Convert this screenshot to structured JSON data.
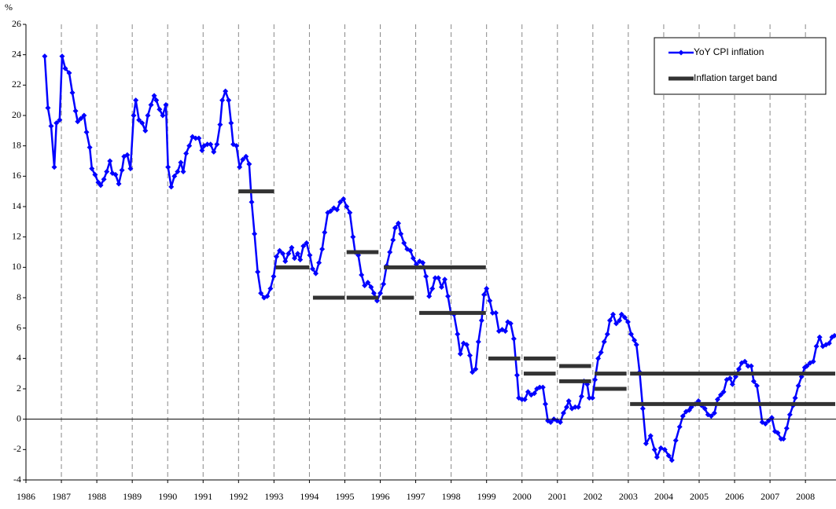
{
  "chart_data": {
    "type": "line",
    "y_label": "%",
    "xlim": [
      1986,
      2008.84
    ],
    "xticks": [
      1986,
      1987,
      1988,
      1989,
      1990,
      1991,
      1992,
      1993,
      1994,
      1995,
      1996,
      1997,
      1998,
      1999,
      2000,
      2001,
      2002,
      2003,
      2004,
      2005,
      2006,
      2007,
      2008
    ],
    "ylim": [
      -4,
      26
    ],
    "yticks": [
      -4,
      -2,
      0,
      2,
      4,
      6,
      8,
      10,
      12,
      14,
      16,
      18,
      20,
      22,
      24,
      26
    ],
    "xgrid": true,
    "legend": "top-right",
    "series": [
      {
        "name": "YoY CPI inflation",
        "color": "#0000ff",
        "marker": "diamond",
        "x": [
          1986.53,
          1986.62,
          1986.71,
          1986.8,
          1986.86,
          1986.95,
          1987.02,
          1987.11,
          1987.22,
          1987.31,
          1987.4,
          1987.46,
          1987.55,
          1987.64,
          1987.71,
          1987.8,
          1987.86,
          1987.95,
          1988.04,
          1988.11,
          1988.2,
          1988.28,
          1988.37,
          1988.44,
          1988.53,
          1988.62,
          1988.71,
          1988.77,
          1988.86,
          1988.95,
          1989.04,
          1989.1,
          1989.19,
          1989.28,
          1989.37,
          1989.44,
          1989.53,
          1989.62,
          1989.68,
          1989.77,
          1989.86,
          1989.95,
          1990.01,
          1990.1,
          1990.19,
          1990.28,
          1990.37,
          1990.44,
          1990.52,
          1990.61,
          1990.7,
          1990.79,
          1990.88,
          1990.97,
          1991.03,
          1991.12,
          1991.21,
          1991.3,
          1991.39,
          1991.48,
          1991.54,
          1991.63,
          1991.72,
          1991.79,
          1991.85,
          1991.94,
          1992.03,
          1992.12,
          1992.21,
          1992.3,
          1992.37,
          1992.45,
          1992.54,
          1992.63,
          1992.72,
          1992.81,
          1992.9,
          1992.99,
          1993.07,
          1993.16,
          1993.25,
          1993.32,
          1993.41,
          1993.5,
          1993.58,
          1993.67,
          1993.74,
          1993.83,
          1993.92,
          1994.01,
          1994.09,
          1994.18,
          1994.27,
          1994.36,
          1994.43,
          1994.52,
          1994.6,
          1994.69,
          1994.78,
          1994.87,
          1994.96,
          1995.05,
          1995.14,
          1995.23,
          1995.29,
          1995.38,
          1995.47,
          1995.56,
          1995.65,
          1995.74,
          1995.82,
          1995.91,
          1996.0,
          1996.09,
          1996.18,
          1996.27,
          1996.36,
          1996.42,
          1996.51,
          1996.58,
          1996.67,
          1996.76,
          1996.85,
          1996.93,
          1997.02,
          1997.11,
          1997.2,
          1997.29,
          1997.38,
          1997.47,
          1997.55,
          1997.64,
          1997.73,
          1997.82,
          1997.91,
          1997.99,
          1998.08,
          1998.18,
          1998.26,
          1998.35,
          1998.44,
          1998.53,
          1998.6,
          1998.69,
          1998.77,
          1998.86,
          1998.93,
          1999.0,
          1999.09,
          1999.17,
          1999.26,
          1999.35,
          1999.44,
          1999.53,
          1999.6,
          1999.68,
          1999.77,
          1999.86,
          1999.91,
          2000.0,
          2000.08,
          2000.17,
          2000.26,
          2000.35,
          2000.42,
          2000.5,
          2000.59,
          2000.66,
          2000.73,
          2000.81,
          2000.9,
          2000.99,
          2001.08,
          2001.17,
          2001.26,
          2001.32,
          2001.41,
          2001.5,
          2001.59,
          2001.68,
          2001.75,
          2001.84,
          2001.9,
          2001.99,
          2002.06,
          2002.15,
          2002.23,
          2002.32,
          2002.41,
          2002.48,
          2002.57,
          2002.66,
          2002.75,
          2002.81,
          2002.9,
          2002.99,
          2003.08,
          2003.17,
          2003.23,
          2003.32,
          2003.41,
          2003.5,
          2003.63,
          2003.74,
          2003.81,
          2003.92,
          2004.03,
          2004.14,
          2004.23,
          2004.34,
          2004.45,
          2004.54,
          2004.63,
          2004.72,
          2004.78,
          2004.89,
          2004.98,
          2005.07,
          2005.16,
          2005.25,
          2005.34,
          2005.43,
          2005.52,
          2005.61,
          2005.69,
          2005.78,
          2005.87,
          2005.94,
          2006.03,
          2006.12,
          2006.2,
          2006.29,
          2006.38,
          2006.47,
          2006.54,
          2006.63,
          2006.71,
          2006.78,
          2006.87,
          2006.96,
          2007.05,
          2007.14,
          2007.22,
          2007.31,
          2007.38,
          2007.47,
          2007.56,
          2007.65,
          2007.71,
          2007.8,
          2007.89,
          2007.98,
          2008.04,
          2008.13,
          2008.22,
          2008.31,
          2008.4,
          2008.49,
          2008.58,
          2008.67,
          2008.75,
          2008.82
        ],
        "values": [
          23.9,
          20.5,
          19.3,
          16.6,
          19.5,
          19.7,
          23.9,
          23.1,
          22.8,
          21.5,
          20.3,
          19.6,
          19.8,
          20.0,
          18.9,
          17.9,
          16.5,
          16.1,
          15.6,
          15.4,
          15.8,
          16.3,
          17.0,
          16.2,
          16.1,
          15.5,
          16.4,
          17.3,
          17.4,
          16.5,
          20.0,
          21.0,
          19.7,
          19.5,
          19.0,
          20.0,
          20.7,
          21.3,
          21.0,
          20.4,
          20.0,
          20.7,
          16.6,
          15.3,
          16.0,
          16.3,
          16.9,
          16.3,
          17.5,
          18.0,
          18.6,
          18.5,
          18.5,
          17.7,
          18.0,
          18.1,
          18.1,
          17.6,
          18.1,
          19.4,
          21.0,
          21.6,
          21.0,
          19.5,
          18.1,
          18.0,
          16.6,
          17.1,
          17.3,
          16.8,
          14.3,
          12.2,
          9.7,
          8.3,
          8.0,
          8.1,
          8.6,
          9.4,
          10.7,
          11.1,
          10.9,
          10.4,
          10.9,
          11.3,
          10.6,
          10.9,
          10.5,
          11.4,
          11.6,
          10.8,
          9.9,
          9.6,
          10.3,
          11.2,
          12.3,
          13.6,
          13.7,
          13.9,
          13.8,
          14.3,
          14.5,
          14.0,
          13.6,
          12.0,
          11.0,
          10.8,
          9.5,
          8.8,
          9.0,
          8.7,
          8.3,
          7.8,
          8.3,
          8.9,
          10.1,
          11.0,
          11.8,
          12.6,
          12.9,
          12.2,
          11.6,
          11.2,
          11.1,
          10.6,
          10.2,
          10.4,
          10.3,
          9.4,
          8.1,
          8.6,
          9.3,
          9.3,
          8.7,
          9.2,
          8.1,
          7.0,
          6.9,
          5.6,
          4.3,
          5.0,
          4.9,
          4.2,
          3.1,
          3.3,
          5.1,
          6.5,
          8.2,
          8.6,
          7.8,
          7.0,
          7.0,
          5.8,
          5.9,
          5.8,
          6.4,
          6.3,
          5.3,
          2.9,
          1.4,
          1.3,
          1.3,
          1.8,
          1.6,
          1.7,
          2.0,
          2.1,
          2.1,
          1.0,
          -0.1,
          -0.2,
          0.0,
          -0.1,
          -0.2,
          0.4,
          0.8,
          1.2,
          0.7,
          0.8,
          0.8,
          1.5,
          2.5,
          2.3,
          1.4,
          1.4,
          2.6,
          4.0,
          4.4,
          5.1,
          5.6,
          6.5,
          6.9,
          6.3,
          6.5,
          6.9,
          6.7,
          6.4,
          5.6,
          5.2,
          4.9,
          3.1,
          0.7,
          -1.6,
          -1.1,
          -2.0,
          -2.5,
          -1.9,
          -2.0,
          -2.4,
          -2.7,
          -1.4,
          -0.5,
          0.2,
          0.5,
          0.6,
          0.8,
          1.0,
          1.2,
          0.9,
          0.7,
          0.3,
          0.2,
          0.4,
          1.3,
          1.6,
          1.8,
          2.6,
          2.7,
          2.3,
          2.8,
          3.3,
          3.7,
          3.8,
          3.5,
          3.5,
          2.5,
          2.2,
          1.0,
          -0.2,
          -0.3,
          -0.1,
          0.1,
          -0.8,
          -0.9,
          -1.3,
          -1.3,
          -0.6,
          0.3,
          0.9,
          1.4,
          2.2,
          2.8,
          3.4,
          3.5,
          3.7,
          3.8,
          4.8,
          5.4,
          4.8,
          4.9,
          5.0,
          5.4,
          5.5
        ]
      },
      {
        "name": "Inflation target band",
        "color": "#333333",
        "x": [
          1992.0,
          1993.0,
          null,
          1993.05,
          1994.0,
          null,
          1994.1,
          1995.0,
          null,
          1995.05,
          1995.95,
          null,
          1995.05,
          1995.95,
          null,
          1996.05,
          1996.95,
          null,
          1996.1,
          1998.98,
          null,
          1997.1,
          1998.98,
          null,
          1999.05,
          1999.95,
          null,
          2000.05,
          2000.95,
          null,
          2000.05,
          2000.95,
          null,
          2001.05,
          2001.95,
          null,
          2001.05,
          2001.95,
          null,
          2002.05,
          2002.95,
          null,
          2002.05,
          2002.95,
          null,
          2003.05,
          2008.84,
          null,
          2003.05,
          2008.84
        ],
        "values": [
          15,
          15,
          null,
          10,
          10,
          null,
          8,
          8,
          null,
          8,
          8,
          null,
          11,
          11,
          null,
          8,
          8,
          null,
          10,
          10,
          null,
          7,
          7,
          null,
          4,
          4,
          null,
          4,
          4,
          null,
          3,
          3,
          null,
          3.5,
          3.5,
          null,
          2.5,
          2.5,
          null,
          3,
          3,
          null,
          2,
          2,
          null,
          3,
          3,
          null,
          1,
          1
        ]
      }
    ]
  }
}
